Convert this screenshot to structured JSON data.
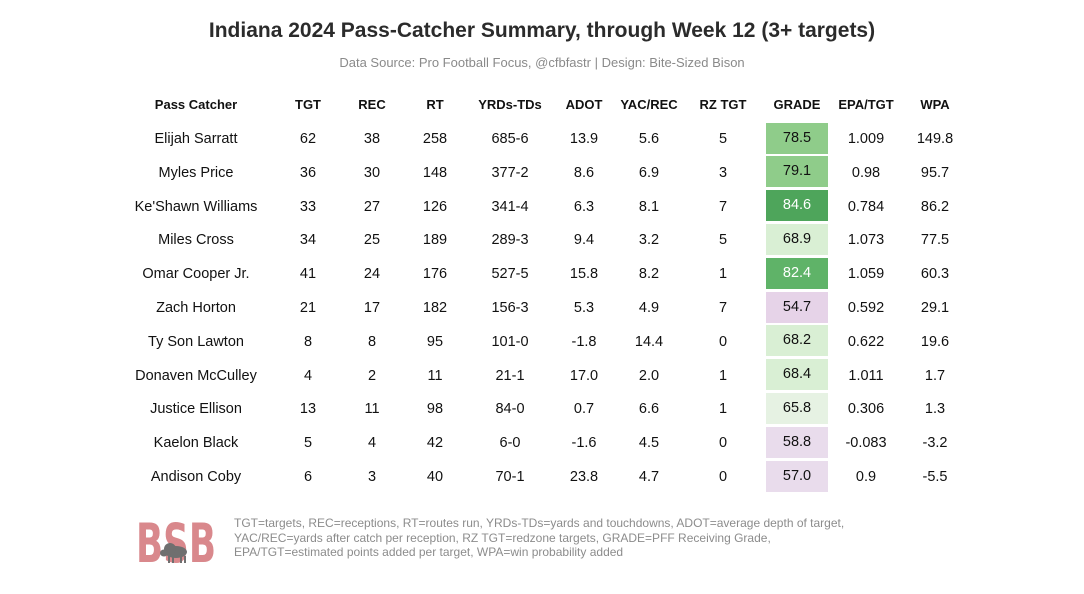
{
  "title": "Indiana 2024 Pass-Catcher Summary, through Week 12 (3+ targets)",
  "subtitle": "Data Source: Pro Football Focus, @cfbfastr | Design: Bite-Sized Bison",
  "logo_text": "BSB",
  "footnote_lines": [
    "TGT=targets, REC=receptions, RT=routes run, YRDs-TDs=yards and touchdowns, ADOT=average depth of target,",
    "YAC/REC=yards after catch per reception, RZ TGT=redzone targets, GRADE=PFF Receiving Grade,",
    "EPA/TGT=estimated points added per target, WPA=win probability added"
  ],
  "chart_data": {
    "type": "table",
    "columns": [
      "Pass Catcher",
      "TGT",
      "REC",
      "RT",
      "YRDs-TDs",
      "ADOT",
      "YAC/REC",
      "RZ TGT",
      "GRADE",
      "EPA/TGT",
      "WPA"
    ],
    "rows": [
      [
        "Elijah Sarratt",
        "62",
        "38",
        "258",
        "685-6",
        "13.9",
        "5.6",
        "5",
        "78.5",
        "1.009",
        "149.8"
      ],
      [
        "Myles Price",
        "36",
        "30",
        "148",
        "377-2",
        "8.6",
        "6.9",
        "3",
        "79.1",
        "0.98",
        "95.7"
      ],
      [
        "Ke'Shawn Williams",
        "33",
        "27",
        "126",
        "341-4",
        "6.3",
        "8.1",
        "7",
        "84.6",
        "0.784",
        "86.2"
      ],
      [
        "Miles Cross",
        "34",
        "25",
        "189",
        "289-3",
        "9.4",
        "3.2",
        "5",
        "68.9",
        "1.073",
        "77.5"
      ],
      [
        "Omar Cooper Jr.",
        "41",
        "24",
        "176",
        "527-5",
        "15.8",
        "8.2",
        "1",
        "82.4",
        "1.059",
        "60.3"
      ],
      [
        "Zach Horton",
        "21",
        "17",
        "182",
        "156-3",
        "5.3",
        "4.9",
        "7",
        "54.7",
        "0.592",
        "29.1"
      ],
      [
        "Ty Son Lawton",
        "8",
        "8",
        "95",
        "101-0",
        "-1.8",
        "14.4",
        "0",
        "68.2",
        "0.622",
        "19.6"
      ],
      [
        "Donaven McCulley",
        "4",
        "2",
        "11",
        "21-1",
        "17.0",
        "2.0",
        "1",
        "68.4",
        "1.011",
        "1.7"
      ],
      [
        "Justice Ellison",
        "13",
        "11",
        "98",
        "84-0",
        "0.7",
        "6.6",
        "1",
        "65.8",
        "0.306",
        "1.3"
      ],
      [
        "Kaelon Black",
        "5",
        "4",
        "42",
        "6-0",
        "-1.6",
        "4.5",
        "0",
        "58.8",
        "-0.083",
        "-3.2"
      ],
      [
        "Andison Coby",
        "6",
        "3",
        "40",
        "70-1",
        "23.8",
        "4.7",
        "0",
        "57.0",
        "0.9",
        "-5.5"
      ]
    ],
    "grade_colors": [
      "#8fcc8a",
      "#8fcc8a",
      "#4ea55b",
      "#d9efd4",
      "#5fb368",
      "#e6d3e8",
      "#d9efd4",
      "#d9efd4",
      "#e6f2e3",
      "#e9dcec",
      "#e9dcec"
    ],
    "grade_text_colors": [
      "#111111",
      "#111111",
      "#ffffff",
      "#111111",
      "#ffffff",
      "#111111",
      "#111111",
      "#111111",
      "#111111",
      "#111111",
      "#111111"
    ],
    "logo_color": "#d9888c"
  }
}
